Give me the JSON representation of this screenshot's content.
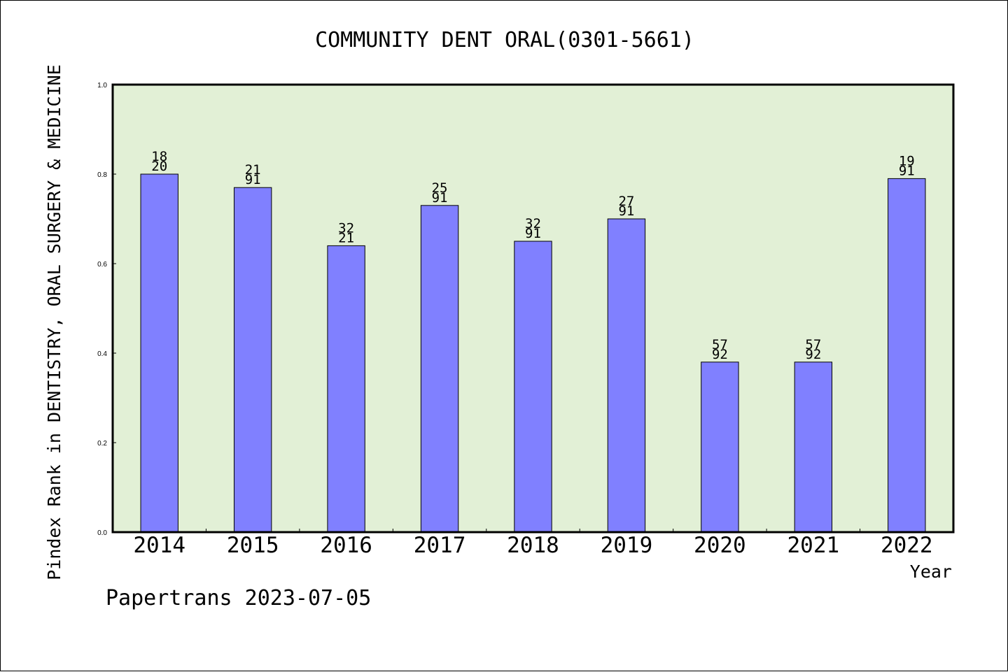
{
  "chart_data": {
    "type": "bar",
    "title": "COMMUNITY DENT ORAL(0301-5661)",
    "xlabel": "Year",
    "ylabel": "Pindex Rank in DENTISTRY, ORAL SURGERY & MEDICINE",
    "ylim": [
      0,
      1.0
    ],
    "yticks": [
      "0.0",
      "0.2",
      "0.4",
      "0.6",
      "0.8",
      "1.0"
    ],
    "grid": false,
    "legend": "none",
    "categories": [
      "2014",
      "2015",
      "2016",
      "2017",
      "2018",
      "2019",
      "2020",
      "2021",
      "2022"
    ],
    "values": [
      0.8,
      0.77,
      0.64,
      0.73,
      0.65,
      0.7,
      0.38,
      0.38,
      0.79
    ],
    "labels_top": [
      "18",
      "21",
      "32",
      "25",
      "32",
      "27",
      "57",
      "57",
      "19"
    ],
    "labels_bottom": [
      "20",
      "91",
      "21",
      "91",
      "91",
      "91",
      "92",
      "92",
      "91"
    ],
    "colors": {
      "bar": "#8080ff",
      "plot_background": "#e2f0d6",
      "axis": "#000000"
    }
  },
  "footer": {
    "credit": "Papertrans 2023-07-05"
  }
}
